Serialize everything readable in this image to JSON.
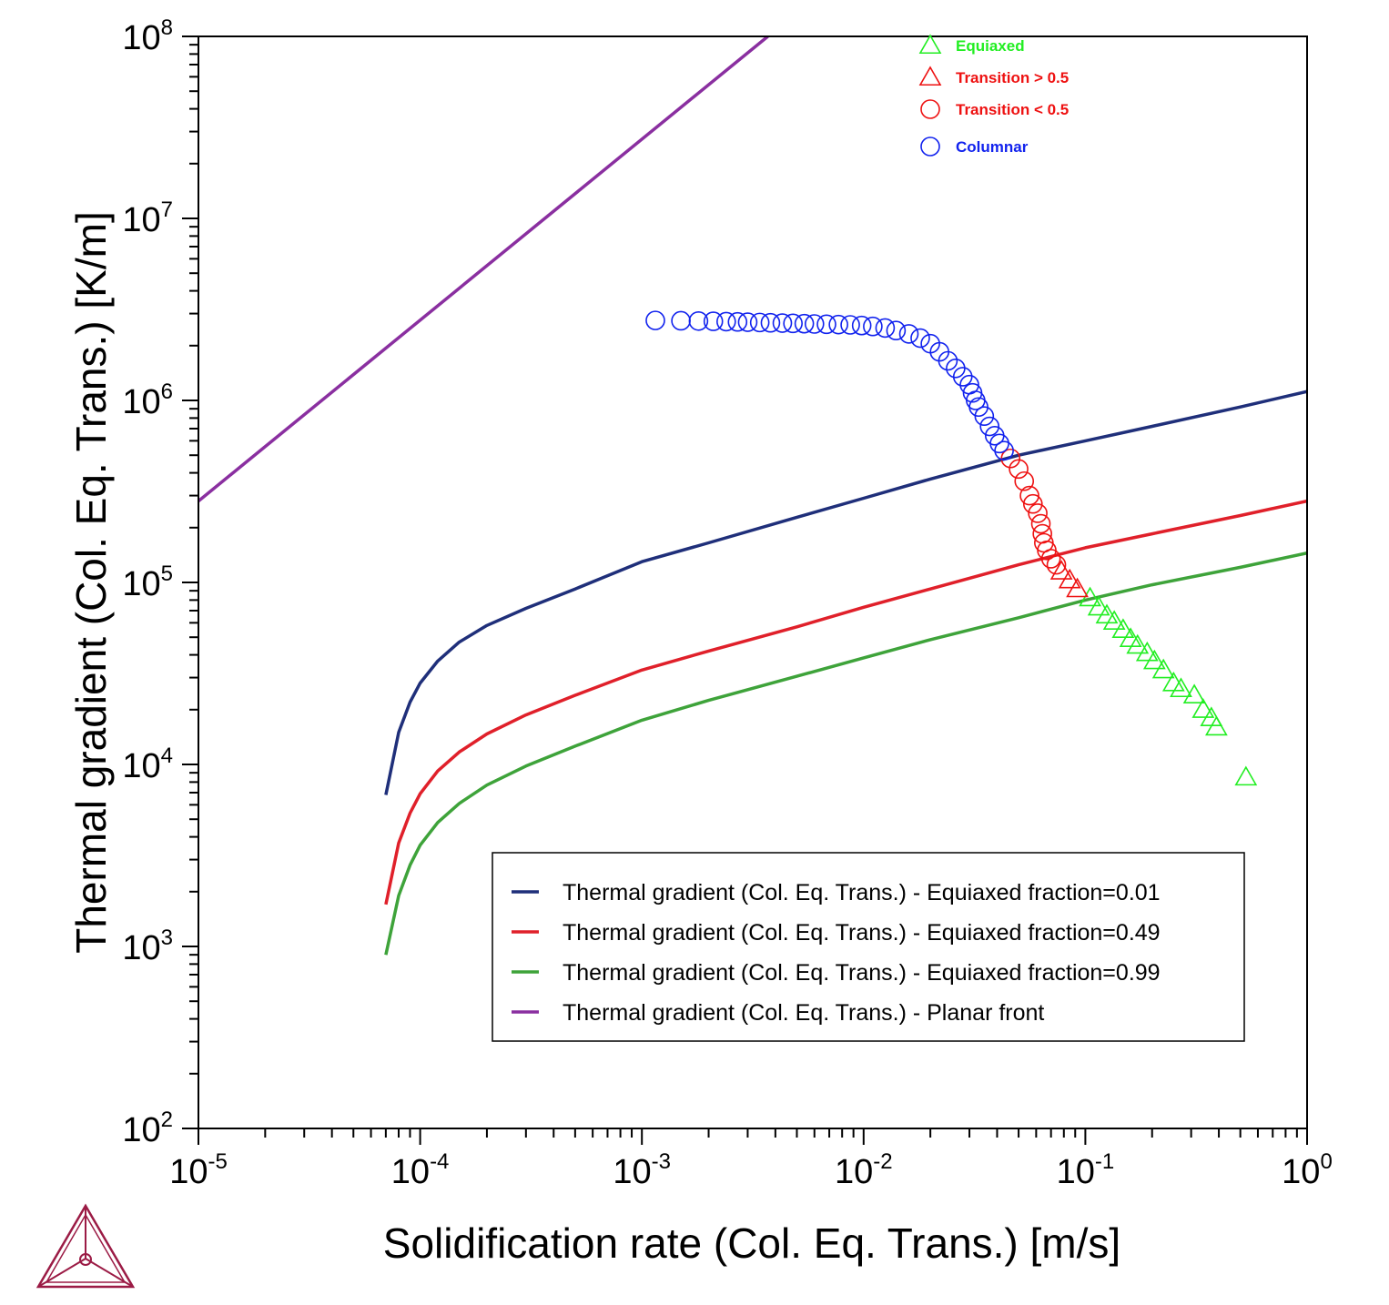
{
  "chart_data": {
    "type": "scatter",
    "xlabel": "Solidification rate (Col. Eq. Trans.) [m/s]",
    "ylabel": "Thermal gradient (Col. Eq. Trans.) [K/m]",
    "x_scale": "log",
    "y_scale": "log",
    "xlim": [
      1e-05,
      1
    ],
    "ylim": [
      100,
      100000000
    ],
    "x_ticks": [
      {
        "base": "10",
        "exp": "-5",
        "value": 1e-05
      },
      {
        "base": "10",
        "exp": "-4",
        "value": 0.0001
      },
      {
        "base": "10",
        "exp": "-3",
        "value": 0.001
      },
      {
        "base": "10",
        "exp": "-2",
        "value": 0.01
      },
      {
        "base": "10",
        "exp": "-1",
        "value": 0.1
      },
      {
        "base": "10",
        "exp": "0",
        "value": 1
      }
    ],
    "y_ticks": [
      {
        "base": "10",
        "exp": "2",
        "value": 100
      },
      {
        "base": "10",
        "exp": "3",
        "value": 1000
      },
      {
        "base": "10",
        "exp": "4",
        "value": 10000
      },
      {
        "base": "10",
        "exp": "5",
        "value": 100000
      },
      {
        "base": "10",
        "exp": "6",
        "value": 1000000
      },
      {
        "base": "10",
        "exp": "7",
        "value": 10000000
      },
      {
        "base": "10",
        "exp": "8",
        "value": 100000000
      }
    ],
    "grid": false,
    "legend_position": "bottom-right",
    "series": [
      {
        "name": "Thermal gradient (Col. Eq. Trans.) - Equiaxed fraction=0.01",
        "color": "#1f2f7a",
        "kind": "line",
        "x": [
          7e-05,
          8e-05,
          9e-05,
          0.0001,
          0.00012,
          0.00015,
          0.0002,
          0.0003,
          0.0005,
          0.001,
          0.002,
          0.005,
          0.01,
          0.02,
          0.05,
          0.1,
          0.2,
          0.5,
          1
        ],
        "y": [
          6800,
          15000,
          22000,
          28000,
          37000,
          47000,
          58000,
          72000,
          92000,
          130000,
          165000,
          228000,
          290000,
          370000,
          500000,
          600000,
          720000,
          920000,
          1120000
        ]
      },
      {
        "name": "Thermal gradient (Col. Eq. Trans.) - Equiaxed fraction=0.49",
        "color": "#e0202a",
        "kind": "line",
        "x": [
          7e-05,
          8e-05,
          9e-05,
          0.0001,
          0.00012,
          0.00015,
          0.0002,
          0.0003,
          0.0005,
          0.001,
          0.002,
          0.005,
          0.01,
          0.02,
          0.05,
          0.1,
          0.2,
          0.5,
          1
        ],
        "y": [
          1700,
          3700,
          5400,
          6900,
          9200,
          11700,
          14700,
          18700,
          24000,
          33000,
          42000,
          57000,
          73000,
          92000,
          125000,
          155000,
          185000,
          233000,
          280000
        ]
      },
      {
        "name": "Thermal gradient (Col. Eq. Trans.) - Equiaxed fraction=0.99",
        "color": "#3ea33a",
        "kind": "line",
        "x": [
          7e-05,
          8e-05,
          9e-05,
          0.0001,
          0.00012,
          0.00015,
          0.0002,
          0.0003,
          0.0005,
          0.001,
          0.002,
          0.005,
          0.01,
          0.02,
          0.05,
          0.1,
          0.2,
          0.5,
          1
        ],
        "y": [
          900,
          1900,
          2800,
          3600,
          4800,
          6100,
          7700,
          9800,
          12600,
          17500,
          22500,
          30500,
          38500,
          48500,
          64000,
          80000,
          97000,
          121000,
          145000
        ]
      },
      {
        "name": "Thermal gradient (Col. Eq. Trans.) - Planar front",
        "color": "#8a2fa0",
        "kind": "line",
        "x": [
          1e-05,
          0.0037
        ],
        "y": [
          280000,
          100000000
        ]
      }
    ],
    "marker_series": [
      {
        "name": "Equiaxed",
        "color": "#22ee22",
        "marker": "triangle",
        "x": [
          0.105,
          0.115,
          0.125,
          0.135,
          0.148,
          0.16,
          0.172,
          0.19,
          0.205,
          0.225,
          0.25,
          0.27,
          0.31,
          0.34,
          0.37,
          0.39,
          0.53
        ],
        "y": [
          82000,
          73000,
          66000,
          61000,
          55000,
          49000,
          45000,
          41000,
          37000,
          33000,
          28000,
          26000,
          24000,
          20000,
          18000,
          16000,
          8500
        ]
      },
      {
        "name": "Transition > 0.5",
        "color": "#ee1111",
        "marker": "triangle",
        "x": [
          0.078,
          0.085,
          0.092
        ],
        "y": [
          115000,
          103000,
          92000
        ]
      },
      {
        "name": "Transition < 0.5",
        "color": "#ee1111",
        "marker": "circle",
        "x": [
          0.046,
          0.05,
          0.053,
          0.056,
          0.058,
          0.061,
          0.063,
          0.064,
          0.065,
          0.067,
          0.07,
          0.074
        ],
        "y": [
          480000,
          420000,
          360000,
          300000,
          270000,
          240000,
          210000,
          185000,
          165000,
          150000,
          135000,
          125000
        ]
      },
      {
        "name": "Columnar",
        "color": "#1122ee",
        "marker": "circle",
        "x": [
          0.00115,
          0.0015,
          0.0018,
          0.0021,
          0.0024,
          0.0027,
          0.003,
          0.0034,
          0.0038,
          0.0043,
          0.0048,
          0.0054,
          0.006,
          0.0068,
          0.0077,
          0.0087,
          0.0098,
          0.011,
          0.0125,
          0.014,
          0.016,
          0.018,
          0.02,
          0.022,
          0.024,
          0.026,
          0.028,
          0.03,
          0.031,
          0.032,
          0.033,
          0.035,
          0.037,
          0.039,
          0.041,
          0.043
        ],
        "y": [
          2750000,
          2740000,
          2730000,
          2720000,
          2710000,
          2700000,
          2690000,
          2680000,
          2670000,
          2660000,
          2650000,
          2640000,
          2630000,
          2620000,
          2610000,
          2600000,
          2580000,
          2550000,
          2500000,
          2420000,
          2320000,
          2200000,
          2050000,
          1850000,
          1650000,
          1500000,
          1350000,
          1220000,
          1100000,
          1000000,
          920000,
          820000,
          720000,
          640000,
          580000,
          530000
        ]
      }
    ]
  }
}
